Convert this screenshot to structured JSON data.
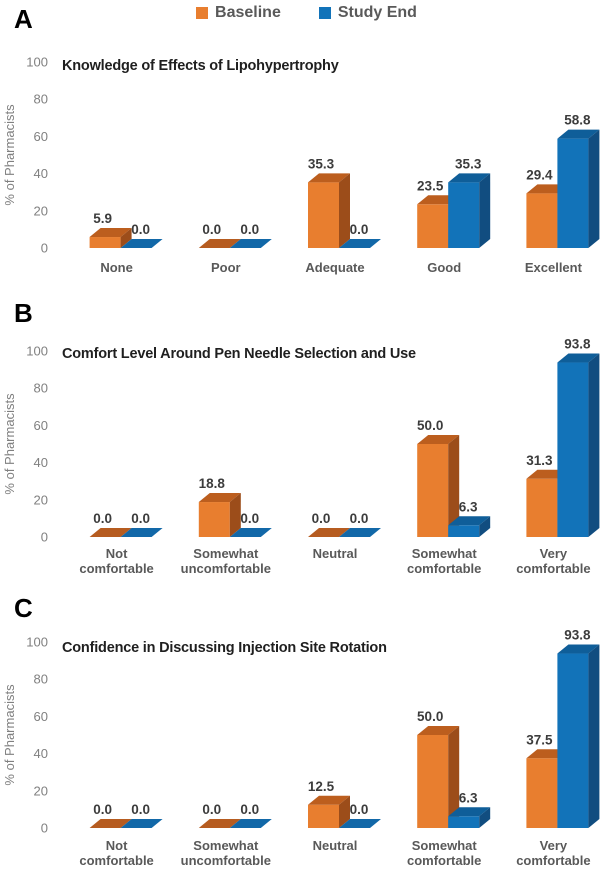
{
  "legend": {
    "items": [
      {
        "label": "Baseline",
        "color": "#E87E2F"
      },
      {
        "label": "Study End",
        "color": "#1273B9"
      }
    ]
  },
  "y_axis": {
    "label": "% of Pharmacists",
    "ticks": [
      0,
      20,
      40,
      60,
      80,
      100
    ]
  },
  "colors": {
    "baseline": {
      "front": "#E87E2F",
      "top": "#BC5E1E",
      "side": "#9C4D1A",
      "flat": "#B65C20"
    },
    "study_end": {
      "front": "#1273B9",
      "top": "#0F5E99",
      "side": "#114D80",
      "flat": "#1268A8"
    },
    "value_label": "#3C3C3C",
    "axis_text": "#808080",
    "category_text": "#595959",
    "title_text": "#1F1F1F",
    "legend_text": "#595959"
  },
  "chart_data": [
    {
      "letter": "A",
      "type": "bar",
      "title": "Knowledge of Effects of Lipohypertrophy",
      "categories": [
        "None",
        "Poor",
        "Adequate",
        "Good",
        "Excellent"
      ],
      "series": [
        {
          "name": "Baseline",
          "values": [
            5.9,
            0.0,
            35.3,
            23.5,
            29.4
          ]
        },
        {
          "name": "Study End",
          "values": [
            0.0,
            0.0,
            0.0,
            35.3,
            58.8
          ]
        }
      ],
      "ylabel": "% of Pharmacists",
      "ylim": [
        0,
        100
      ],
      "gridlines": false,
      "legend_position": "top",
      "style": "3d-bar"
    },
    {
      "letter": "B",
      "type": "bar",
      "title": "Comfort Level Around Pen Needle Selection and Use",
      "categories": [
        "Not comfortable",
        "Somewhat uncomfortable",
        "Neutral",
        "Somewhat comfortable",
        "Very comfortable"
      ],
      "series": [
        {
          "name": "Baseline",
          "values": [
            0.0,
            18.8,
            0.0,
            50.0,
            31.3
          ]
        },
        {
          "name": "Study End",
          "values": [
            0.0,
            0.0,
            0.0,
            6.3,
            93.8
          ]
        }
      ],
      "ylabel": "% of Pharmacists",
      "ylim": [
        0,
        100
      ],
      "gridlines": false,
      "legend_position": "top",
      "style": "3d-bar"
    },
    {
      "letter": "C",
      "type": "bar",
      "title": "Confidence in Discussing Injection Site Rotation",
      "categories": [
        "Not comfortable",
        "Somewhat uncomfortable",
        "Neutral",
        "Somewhat comfortable",
        "Very comfortable"
      ],
      "series": [
        {
          "name": "Baseline",
          "values": [
            0.0,
            0.0,
            12.5,
            50.0,
            37.5
          ]
        },
        {
          "name": "Study End",
          "values": [
            0.0,
            0.0,
            0.0,
            6.3,
            93.8
          ]
        }
      ],
      "ylabel": "% of Pharmacists",
      "ylim": [
        0,
        100
      ],
      "gridlines": false,
      "legend_position": "top",
      "style": "3d-bar"
    }
  ]
}
